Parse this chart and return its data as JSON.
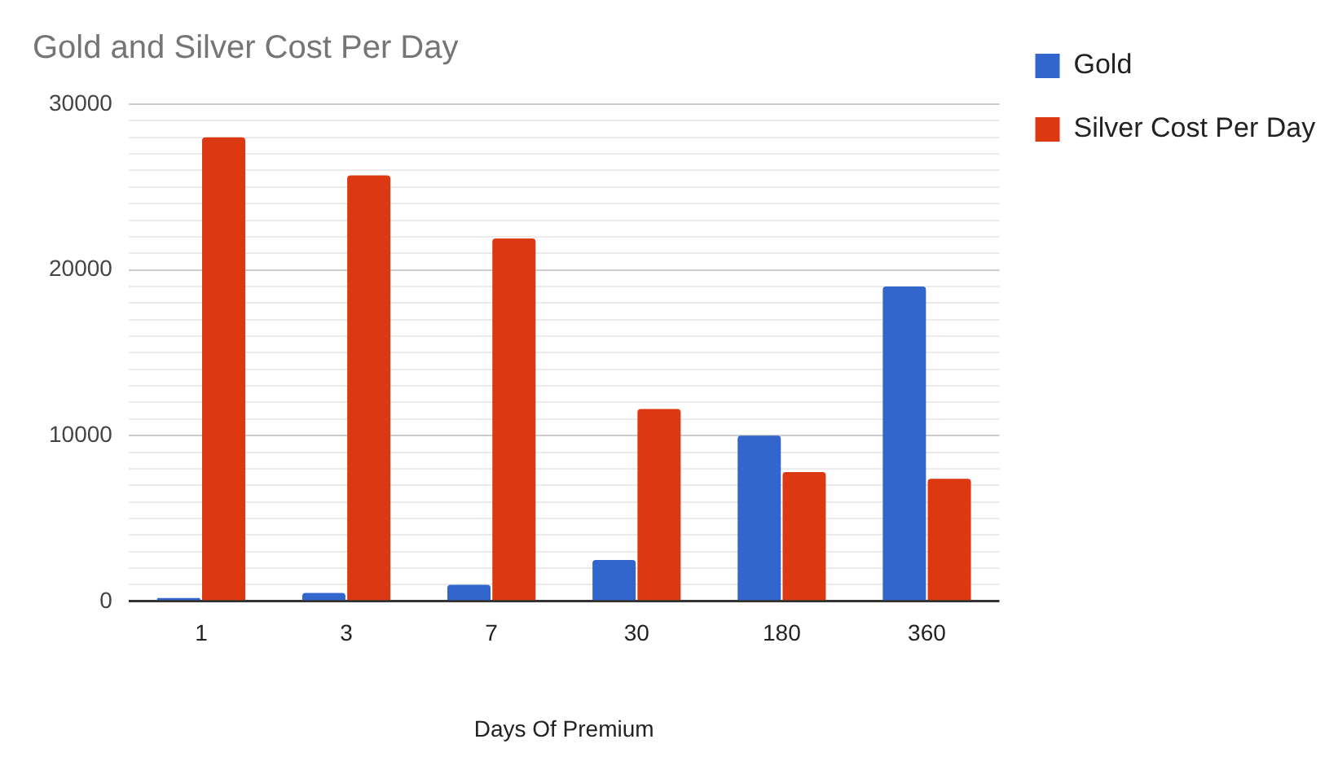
{
  "chart_data": {
    "type": "bar",
    "title": "Gold and Silver Cost Per Day",
    "xlabel": "Days Of Premium",
    "categories": [
      "1",
      "3",
      "7",
      "30",
      "180",
      "360"
    ],
    "series": [
      {
        "name": "Gold",
        "color": "#3366cc",
        "values": [
          200,
          500,
          1000,
          2500,
          10000,
          19000
        ]
      },
      {
        "name": "Silver Cost Per Day",
        "color": "#dc3912",
        "values": [
          28000,
          25700,
          21900,
          11600,
          7800,
          7400
        ]
      }
    ],
    "ylim": [
      0,
      30000
    ],
    "yticks": [
      0,
      {
        "value": 1000,
        "label": null
      },
      {
        "value": 2000,
        "label": null
      },
      {
        "value": 3000,
        "label": null
      },
      {
        "value": 4000,
        "label": null
      },
      {
        "value": 5000,
        "label": null
      },
      {
        "value": 6000,
        "label": null
      },
      {
        "value": 7000,
        "label": null
      },
      {
        "value": 8000,
        "label": null
      },
      {
        "value": 9000,
        "label": null
      },
      10000,
      {
        "value": 11000,
        "label": null
      },
      {
        "value": 12000,
        "label": null
      },
      {
        "value": 13000,
        "label": null
      },
      {
        "value": 14000,
        "label": null
      },
      {
        "value": 15000,
        "label": null
      },
      {
        "value": 16000,
        "label": null
      },
      {
        "value": 17000,
        "label": null
      },
      {
        "value": 18000,
        "label": null
      },
      {
        "value": 19000,
        "label": null
      },
      20000,
      {
        "value": 21000,
        "label": null
      },
      {
        "value": 22000,
        "label": null
      },
      {
        "value": 23000,
        "label": null
      },
      {
        "value": 24000,
        "label": null
      },
      {
        "value": 25000,
        "label": null
      },
      {
        "value": 26000,
        "label": null
      },
      {
        "value": 27000,
        "label": null
      },
      {
        "value": 28000,
        "label": null
      },
      {
        "value": 29000,
        "label": null
      },
      30000
    ],
    "grid": "y",
    "legend": "top right"
  }
}
